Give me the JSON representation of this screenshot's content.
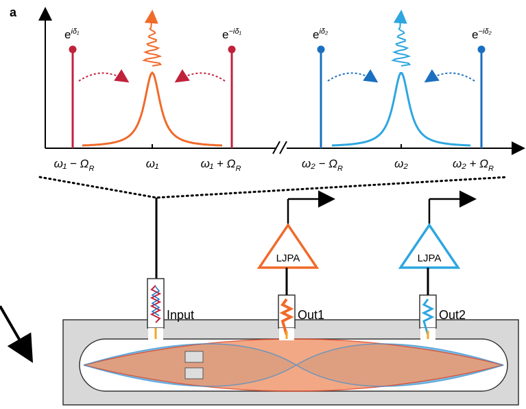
{
  "panel_label": "a",
  "phase_labels": [
    {
      "base": "e",
      "sup": "iδ₁"
    },
    {
      "base": "e",
      "sup": "−iδ₁"
    },
    {
      "base": "e",
      "sup": "iδ₂"
    },
    {
      "base": "e",
      "sup": "−iδ₂"
    }
  ],
  "axis_labels": [
    {
      "main": "ω₁ − Ω",
      "sub": "R"
    },
    {
      "main": "ω₁",
      "sub": ""
    },
    {
      "main": "ω₁ + Ω",
      "sub": "R"
    },
    {
      "main": "ω₂ − Ω",
      "sub": "R"
    },
    {
      "main": "ω₂",
      "sub": ""
    },
    {
      "main": "ω₂ + Ω",
      "sub": "R"
    }
  ],
  "amplifiers": [
    "LJPA",
    "LJPA"
  ],
  "ports": [
    "Input",
    "Out1",
    "Out2"
  ]
}
